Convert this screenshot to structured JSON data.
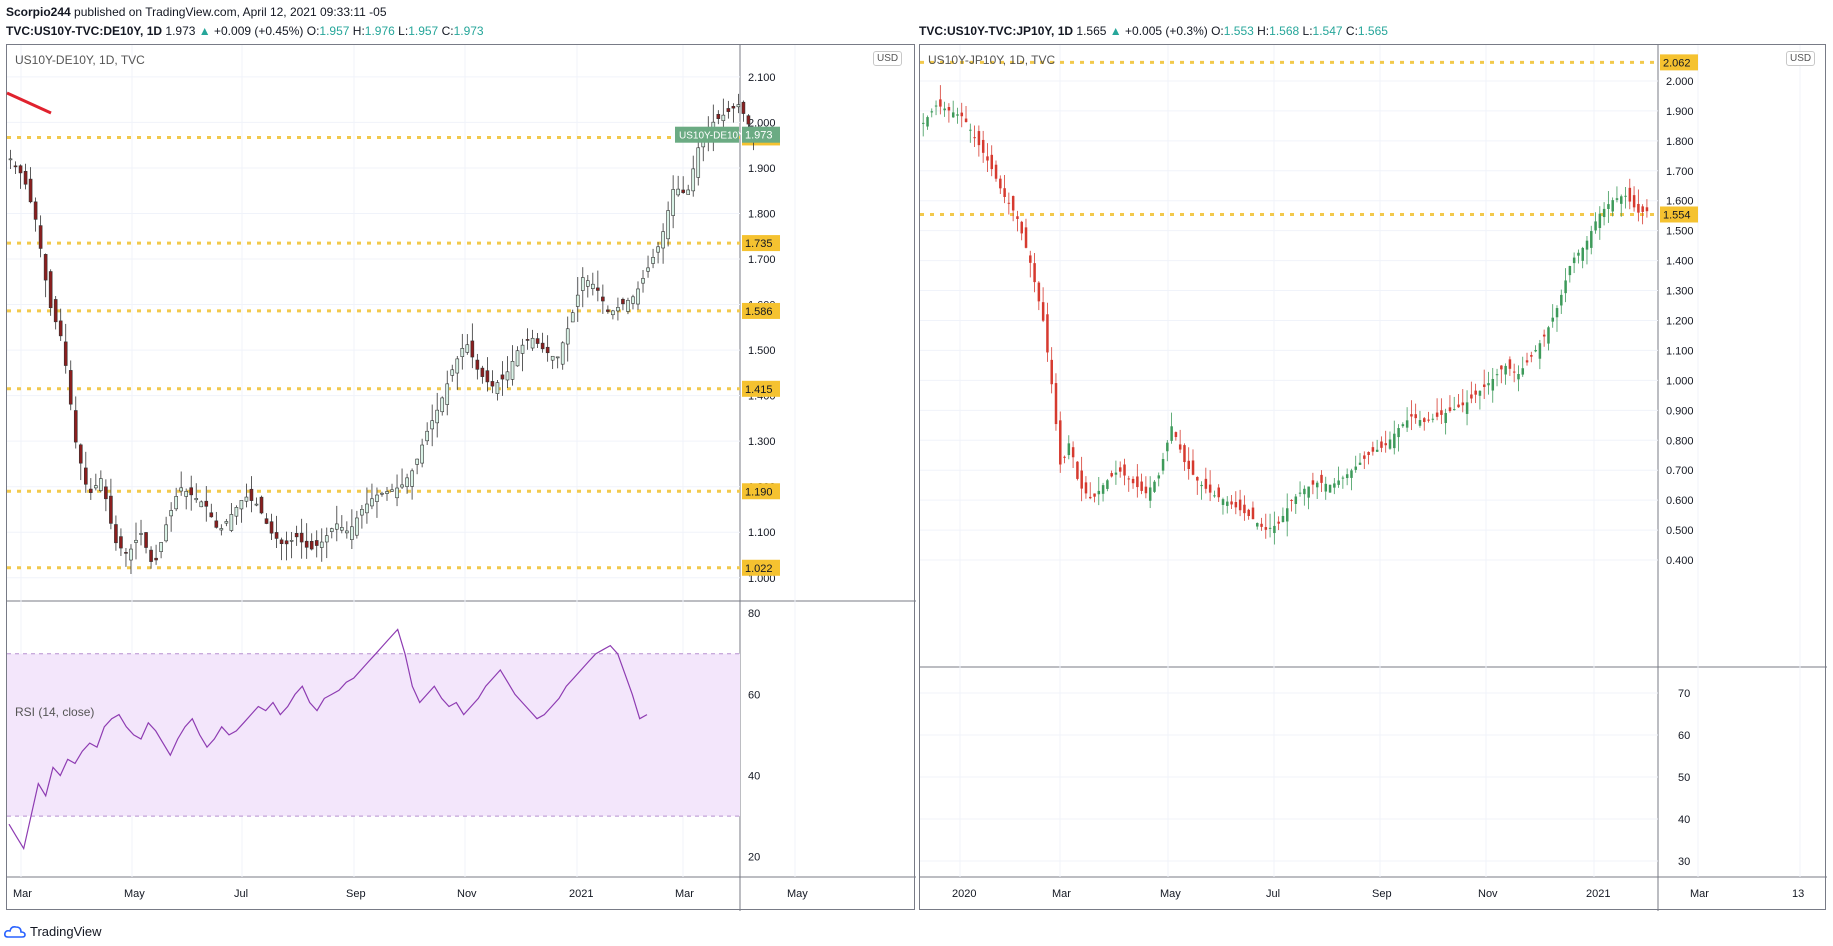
{
  "header": {
    "publisher": "Scorpio244",
    "published_text": "published on TradingView.com, April 12, 2021 09:33:11 -05"
  },
  "footer": {
    "brand": "TradingView",
    "logo_icon": "tradingview-cloud-icon"
  },
  "left_chart": {
    "symbol_line": {
      "symbol": "TVC:US10Y-TVC:DE10Y, 1D",
      "last": "1.973",
      "change": "+0.009 (+0.45%)",
      "o_label": "O:",
      "o": "1.957",
      "h_label": "H:",
      "h": "1.976",
      "l_label": "L:",
      "l": "1.957",
      "c_label": "C:",
      "c": "1.973"
    },
    "pane_title": "US10Y-DE10Y, 1D, TVC",
    "currency": "USD",
    "symbol_tag": "US10Y-DE10Y",
    "last_price_tag": "1.973",
    "rsi_title": "RSI (14, close)"
  },
  "right_chart": {
    "symbol_line": {
      "symbol": "TVC:US10Y-TVC:JP10Y, 1D",
      "last": "1.565",
      "change": "+0.005 (+0.3%)",
      "o_label": "O:",
      "o": "1.553",
      "h_label": "H:",
      "h": "1.568",
      "l_label": "L:",
      "l": "1.547",
      "c_label": "C:",
      "c": "1.565"
    },
    "pane_title": "US10Y-JP10Y, 1D, TVC",
    "currency": "USD"
  },
  "chart_data": [
    {
      "type": "candlestick",
      "title": "US10Y-DE10Y, 1D, TVC",
      "ylim": [
        0.96,
        2.17
      ],
      "yticks": [
        "2.100",
        "2.000",
        "1.900",
        "1.800",
        "1.700",
        "1.600",
        "1.500",
        "1.400",
        "1.300",
        "1.200",
        "1.100",
        "1.000"
      ],
      "xticks": [
        "Mar",
        "May",
        "Jul",
        "Sep",
        "Nov",
        "2021",
        "Mar",
        "May"
      ],
      "price_path_points": [
        [
          0,
          1.92
        ],
        [
          4,
          1.88
        ],
        [
          8,
          1.78
        ],
        [
          12,
          1.6
        ],
        [
          16,
          1.52
        ],
        [
          20,
          1.3
        ],
        [
          24,
          1.18
        ],
        [
          28,
          1.22
        ],
        [
          32,
          1.08
        ],
        [
          36,
          1.05
        ],
        [
          40,
          1.1
        ],
        [
          44,
          1.02
        ],
        [
          48,
          1.12
        ],
        [
          52,
          1.2
        ],
        [
          56,
          1.18
        ],
        [
          60,
          1.16
        ],
        [
          64,
          1.1
        ],
        [
          68,
          1.14
        ],
        [
          72,
          1.18
        ],
        [
          76,
          1.16
        ],
        [
          80,
          1.1
        ],
        [
          84,
          1.07
        ],
        [
          88,
          1.09
        ],
        [
          92,
          1.06
        ],
        [
          96,
          1.08
        ],
        [
          100,
          1.12
        ],
        [
          104,
          1.1
        ],
        [
          108,
          1.15
        ],
        [
          112,
          1.18
        ],
        [
          116,
          1.19
        ],
        [
          120,
          1.2
        ],
        [
          124,
          1.24
        ],
        [
          128,
          1.32
        ],
        [
          132,
          1.38
        ],
        [
          136,
          1.46
        ],
        [
          140,
          1.52
        ],
        [
          144,
          1.45
        ],
        [
          148,
          1.42
        ],
        [
          152,
          1.44
        ],
        [
          156,
          1.5
        ],
        [
          160,
          1.53
        ],
        [
          164,
          1.5
        ],
        [
          168,
          1.48
        ],
        [
          172,
          1.56
        ],
        [
          176,
          1.66
        ],
        [
          180,
          1.64
        ],
        [
          184,
          1.58
        ],
        [
          188,
          1.6
        ],
        [
          192,
          1.62
        ],
        [
          196,
          1.68
        ],
        [
          200,
          1.74
        ],
        [
          204,
          1.86
        ],
        [
          208,
          1.84
        ],
        [
          212,
          1.96
        ],
        [
          216,
          2.0
        ],
        [
          220,
          2.02
        ],
        [
          224,
          2.04
        ],
        [
          228,
          1.98
        ],
        [
          230,
          1.973
        ]
      ],
      "horizontal_levels": [
        "1.967",
        "1.735",
        "1.586",
        "1.415",
        "1.190",
        "1.022"
      ],
      "last_value": 1.973
    },
    {
      "type": "line",
      "title": "RSI (14, close)",
      "ylim": [
        15,
        83
      ],
      "yticks": [
        "80",
        "60",
        "40",
        "20"
      ],
      "band": [
        30,
        70
      ],
      "values": [
        28,
        25,
        22,
        30,
        38,
        35,
        42,
        40,
        44,
        43,
        46,
        48,
        47,
        52,
        54,
        55,
        52,
        50,
        49,
        53,
        51,
        48,
        45,
        49,
        52,
        54,
        50,
        47,
        49,
        52,
        50,
        51,
        53,
        55,
        57,
        56,
        58,
        55,
        57,
        60,
        62,
        58,
        56,
        59,
        60,
        61,
        63,
        64,
        66,
        68,
        70,
        72,
        74,
        76,
        70,
        62,
        58,
        60,
        62,
        59,
        57,
        58,
        55,
        57,
        59,
        62,
        64,
        66,
        63,
        60,
        58,
        56,
        54,
        55,
        57,
        59,
        62,
        64,
        66,
        68,
        70,
        71,
        72,
        70,
        65,
        60,
        54,
        55
      ],
      "last_value": 55
    },
    {
      "type": "candlestick",
      "title": "US10Y-JP10Y, 1D, TVC",
      "ylim": [
        0.35,
        2.1
      ],
      "yticks": [
        "2.000",
        "1.900",
        "1.800",
        "1.700",
        "1.600",
        "1.500",
        "1.400",
        "1.300",
        "1.200",
        "1.100",
        "1.000",
        "0.900",
        "0.800",
        "0.700",
        "0.600",
        "0.500",
        "0.400"
      ],
      "xticks": [
        "2020",
        "Mar",
        "May",
        "Jul",
        "Sep",
        "Nov",
        "2021",
        "Mar",
        "13"
      ],
      "price_path_points": [
        [
          0,
          1.86
        ],
        [
          6,
          1.92
        ],
        [
          12,
          1.9
        ],
        [
          18,
          1.88
        ],
        [
          24,
          1.8
        ],
        [
          30,
          1.72
        ],
        [
          36,
          1.62
        ],
        [
          42,
          1.55
        ],
        [
          48,
          1.4
        ],
        [
          54,
          1.2
        ],
        [
          58,
          0.98
        ],
        [
          62,
          0.7
        ],
        [
          66,
          0.8
        ],
        [
          70,
          0.65
        ],
        [
          76,
          0.6
        ],
        [
          82,
          0.66
        ],
        [
          88,
          0.7
        ],
        [
          94,
          0.66
        ],
        [
          100,
          0.62
        ],
        [
          106,
          0.68
        ],
        [
          112,
          0.85
        ],
        [
          118,
          0.72
        ],
        [
          124,
          0.66
        ],
        [
          130,
          0.62
        ],
        [
          136,
          0.6
        ],
        [
          142,
          0.57
        ],
        [
          148,
          0.54
        ],
        [
          154,
          0.5
        ],
        [
          160,
          0.52
        ],
        [
          166,
          0.6
        ],
        [
          172,
          0.64
        ],
        [
          178,
          0.66
        ],
        [
          184,
          0.65
        ],
        [
          190,
          0.68
        ],
        [
          196,
          0.72
        ],
        [
          202,
          0.76
        ],
        [
          208,
          0.78
        ],
        [
          214,
          0.84
        ],
        [
          220,
          0.88
        ],
        [
          226,
          0.86
        ],
        [
          232,
          0.88
        ],
        [
          238,
          0.9
        ],
        [
          244,
          0.92
        ],
        [
          250,
          0.96
        ],
        [
          256,
          1.0
        ],
        [
          262,
          1.05
        ],
        [
          268,
          1.02
        ],
        [
          274,
          1.08
        ],
        [
          280,
          1.15
        ],
        [
          286,
          1.25
        ],
        [
          292,
          1.4
        ],
        [
          298,
          1.45
        ],
        [
          304,
          1.55
        ],
        [
          310,
          1.6
        ],
        [
          316,
          1.62
        ],
        [
          322,
          1.56
        ],
        [
          326,
          1.565
        ]
      ],
      "horizontal_levels": [
        "2.062",
        "1.554"
      ],
      "last_value": 1.565
    }
  ]
}
